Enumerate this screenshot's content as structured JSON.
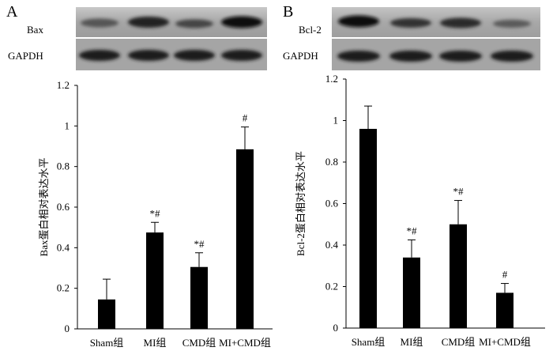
{
  "panels": [
    {
      "letter": "A",
      "blot": {
        "row_labels": [
          "Bax",
          "GAPDH"
        ]
      }
    },
    {
      "letter": "B",
      "blot": {
        "row_labels": [
          "Bcl-2",
          "GAPDH"
        ]
      }
    }
  ],
  "colors": {
    "bar": "#000000",
    "axis": "#000000",
    "blot_bg": "#9a9a9a",
    "band": "#1a1a1a"
  },
  "chart_data": [
    {
      "type": "bar",
      "categories": [
        "Sham组",
        "MI组",
        "CMD组",
        "MI+CMD组"
      ],
      "values": [
        0.145,
        0.475,
        0.305,
        0.885
      ],
      "errors": [
        0.1,
        0.05,
        0.07,
        0.11
      ],
      "annotations": [
        "",
        "*#",
        "*#",
        "#"
      ],
      "ylabel": "Bax蛋白相对表达水平",
      "yticks": [
        "0",
        "0.2",
        "0.4",
        "0.6",
        "0.8",
        "1",
        "1.2"
      ],
      "ylim": [
        0,
        1.2
      ]
    },
    {
      "type": "bar",
      "categories": [
        "Sham组",
        "MI组",
        "CMD组",
        "MI+CMD组"
      ],
      "values": [
        0.96,
        0.34,
        0.5,
        0.17
      ],
      "errors": [
        0.11,
        0.085,
        0.115,
        0.045
      ],
      "annotations": [
        "",
        "*#",
        "*#",
        "#"
      ],
      "ylabel": "Bcl-2蛋白相对表达水平",
      "yticks": [
        "0",
        "0.2",
        "0.4",
        "0.6",
        "0.8",
        "1",
        "1.2"
      ],
      "ylim": [
        0,
        1.2
      ]
    }
  ]
}
